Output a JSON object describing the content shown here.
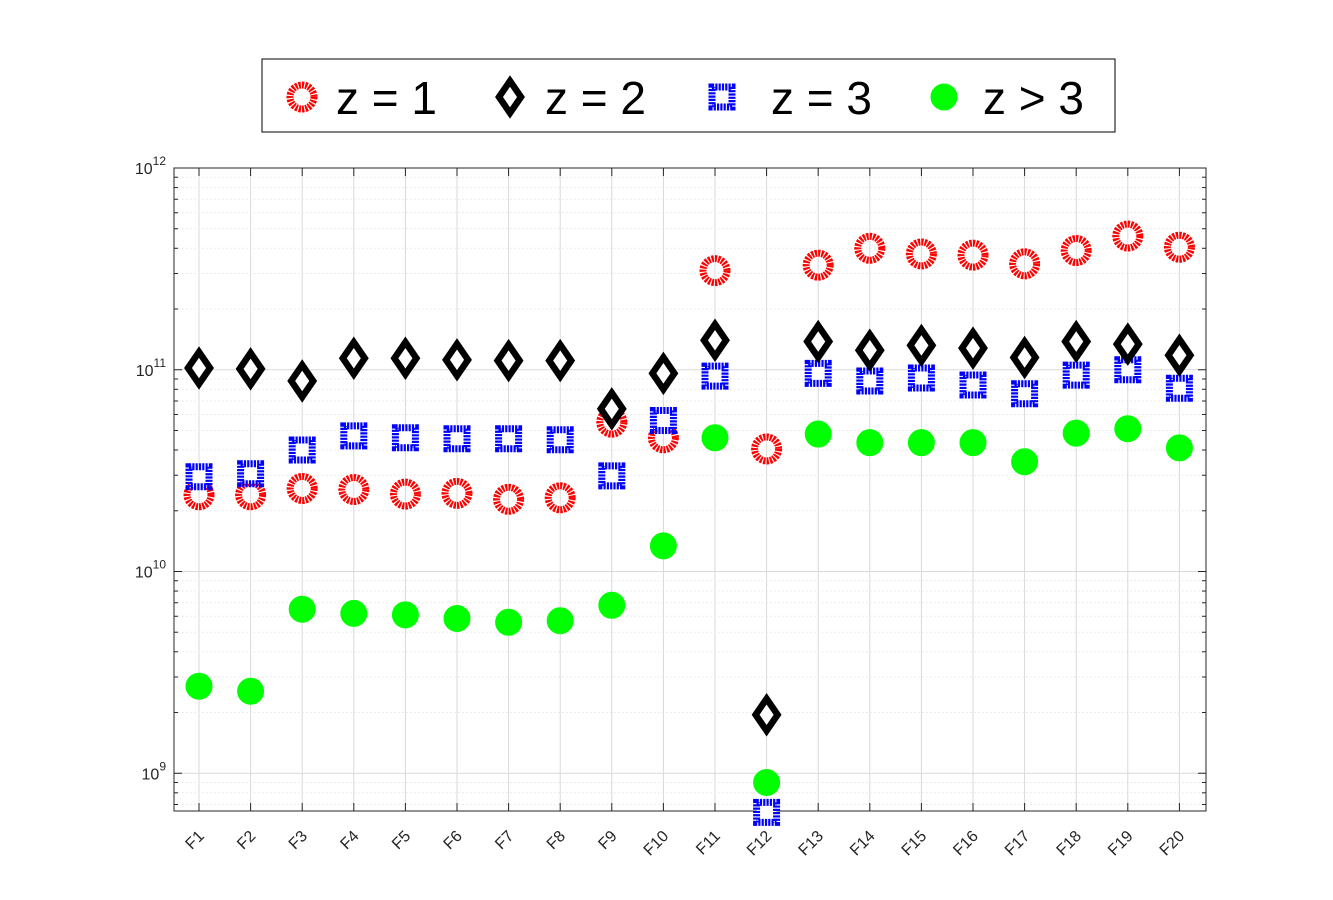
{
  "chart_data": {
    "type": "scatter",
    "y_scale": "log",
    "ylim": [
      650000000,
      1000000000000
    ],
    "ytick_labels": [
      {
        "base": "10",
        "exp": "9"
      },
      {
        "base": "10",
        "exp": "10"
      },
      {
        "base": "10",
        "exp": "11"
      },
      {
        "base": "10",
        "exp": "12"
      }
    ],
    "ytick_values": [
      1000000000,
      10000000000,
      100000000000,
      1000000000000
    ],
    "grid": true,
    "legend_position": "top",
    "categories": [
      "F1",
      "F2",
      "F3",
      "F4",
      "F5",
      "F6",
      "F7",
      "F8",
      "F9",
      "F10",
      "F11",
      "F12",
      "F13",
      "F14",
      "F15",
      "F16",
      "F17",
      "F18",
      "F19",
      "F20"
    ],
    "series": [
      {
        "name": "z = 1",
        "marker": "circle-ring",
        "color": "#ff0000",
        "values": [
          24000000000,
          24000000000,
          25800000000,
          25500000000,
          24200000000,
          24400000000,
          22800000000,
          23200000000,
          55000000000,
          46000000000,
          310000000000,
          40500000000,
          330000000000,
          400000000000,
          375000000000,
          370000000000,
          335000000000,
          390000000000,
          460000000000,
          405000000000
        ]
      },
      {
        "name": "z = 2",
        "marker": "diamond",
        "color": "#000000",
        "values": [
          102000000000,
          101000000000,
          88000000000,
          114000000000,
          114000000000,
          112000000000,
          111000000000,
          111000000000,
          64000000000,
          96000000000,
          140000000000,
          1950000000,
          138000000000,
          125000000000,
          132000000000,
          128000000000,
          115000000000,
          138000000000,
          134000000000,
          118000000000
        ]
      },
      {
        "name": "z = 3",
        "marker": "square",
        "color": "#0000ff",
        "values": [
          29500000000,
          30500000000,
          40000000000,
          47000000000,
          46000000000,
          45500000000,
          45500000000,
          45000000000,
          29800000000,
          56000000000,
          93000000000,
          640000000,
          96000000000,
          88000000000,
          91000000000,
          84000000000,
          76000000000,
          94000000000,
          100000000000,
          81000000000
        ]
      },
      {
        "name": "z > 3",
        "marker": "filled-circle",
        "color": "#00ff00",
        "values": [
          2700000000,
          2550000000,
          6500000000,
          6200000000,
          6100000000,
          5850000000,
          5600000000,
          5700000000,
          6800000000,
          13400000000,
          46000000000,
          null,
          48000000000,
          43500000000,
          43500000000,
          43500000000,
          35000000000,
          48500000000,
          51000000000,
          41000000000
        ]
      },
      {
        "name": "",
        "marker": "filled-circle",
        "color": "#00ff00",
        "values": [
          null,
          null,
          null,
          null,
          null,
          null,
          null,
          null,
          null,
          null,
          null,
          900000000,
          null,
          null,
          null,
          null,
          null,
          null,
          null,
          null
        ]
      }
    ],
    "colors": {
      "z1": "#ff0000",
      "z2": "#000000",
      "z3": "#0000ff",
      "z4": "#00ff00",
      "axis": "#262626",
      "grid": "#d9d9d9"
    }
  }
}
